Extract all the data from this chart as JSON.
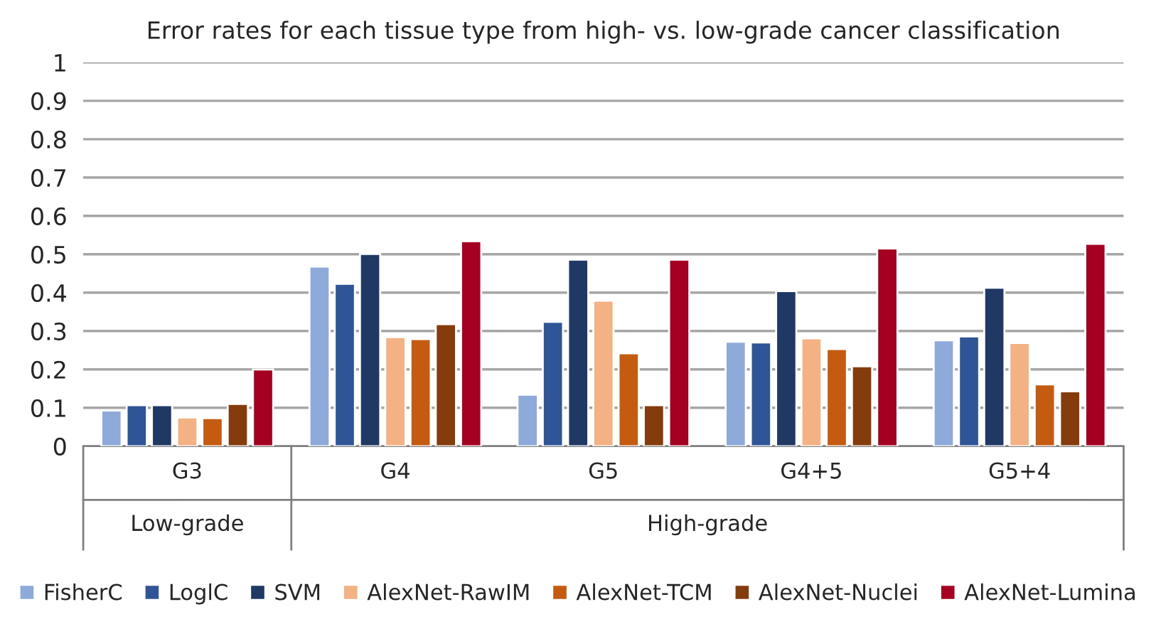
{
  "chart_data": {
    "type": "bar",
    "title": "Error rates for each tissue type from high- vs. low-grade cancer classification",
    "categories": [
      "G3",
      "G4",
      "G5",
      "G4+5",
      "G5+4"
    ],
    "series": [
      {
        "name": "FisherC",
        "color": "#8eaadb",
        "values": [
          0.093,
          0.468,
          0.134,
          0.272,
          0.276
        ]
      },
      {
        "name": "LoglC",
        "color": "#2f5597",
        "values": [
          0.107,
          0.423,
          0.324,
          0.27,
          0.286
        ]
      },
      {
        "name": "SVM",
        "color": "#1f3864",
        "values": [
          0.107,
          0.501,
          0.486,
          0.404,
          0.413
        ]
      },
      {
        "name": "AlexNet-RawIM",
        "color": "#f4b183",
        "values": [
          0.075,
          0.284,
          0.379,
          0.281,
          0.269
        ]
      },
      {
        "name": "AlexNet-TCM",
        "color": "#c55a11",
        "values": [
          0.073,
          0.279,
          0.242,
          0.253,
          0.161
        ]
      },
      {
        "name": "AlexNet-Nuclei",
        "color": "#843c0c",
        "values": [
          0.11,
          0.318,
          0.107,
          0.208,
          0.143
        ]
      },
      {
        "name": "AlexNet-Lumina",
        "color": "#a50021",
        "values": [
          0.2,
          0.534,
          0.486,
          0.515,
          0.527
        ]
      }
    ],
    "annotations": [
      "Low-grade",
      "High-grade"
    ],
    "ylim": [
      0,
      1
    ],
    "yticks": [
      0,
      0.1,
      0.2,
      0.3,
      0.4,
      0.5,
      0.6,
      0.7,
      0.8,
      0.9,
      1
    ],
    "grid": "y",
    "legend": "bottom"
  }
}
